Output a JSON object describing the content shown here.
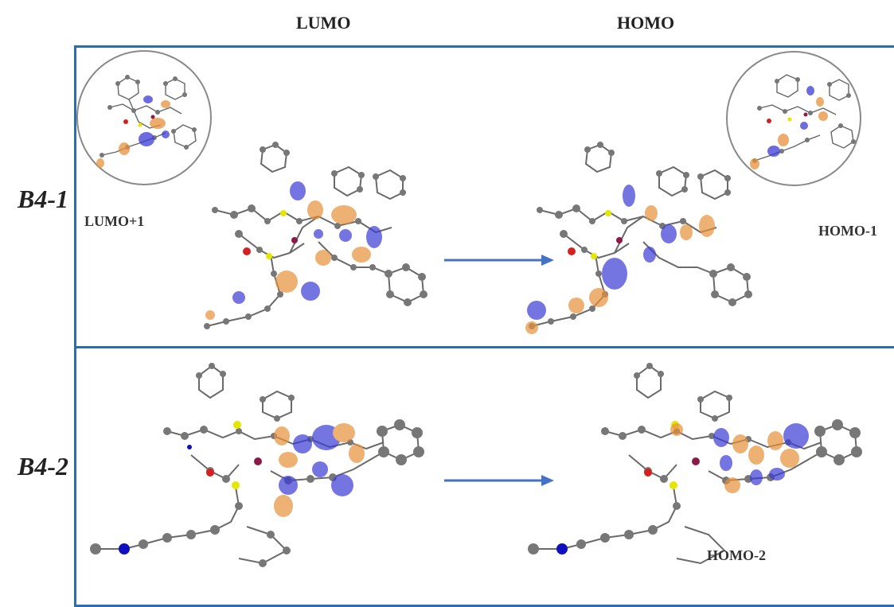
{
  "headers": {
    "left": "LUMO",
    "right": "HOMO"
  },
  "rows": [
    {
      "label": "B4-1",
      "left_inset_label": "LUMO+1",
      "right_inset_label": "HOMO-1"
    },
    {
      "label": "B4-2",
      "right_label": "HOMO-2"
    }
  ],
  "colors": {
    "frame": "#2a6db3",
    "arrow": "#4472c4",
    "orbital_positive": "#3b3bd6",
    "orbital_negative": "#e8913a",
    "atom_carbon": "#707070",
    "atom_sulfur": "#e6e600",
    "atom_oxygen": "#d62020",
    "atom_nitrogen": "#1010c0",
    "atom_metal": "#8b1a4a"
  },
  "icons": [
    "molecule-structure",
    "orbital-lobe",
    "transition-arrow"
  ]
}
